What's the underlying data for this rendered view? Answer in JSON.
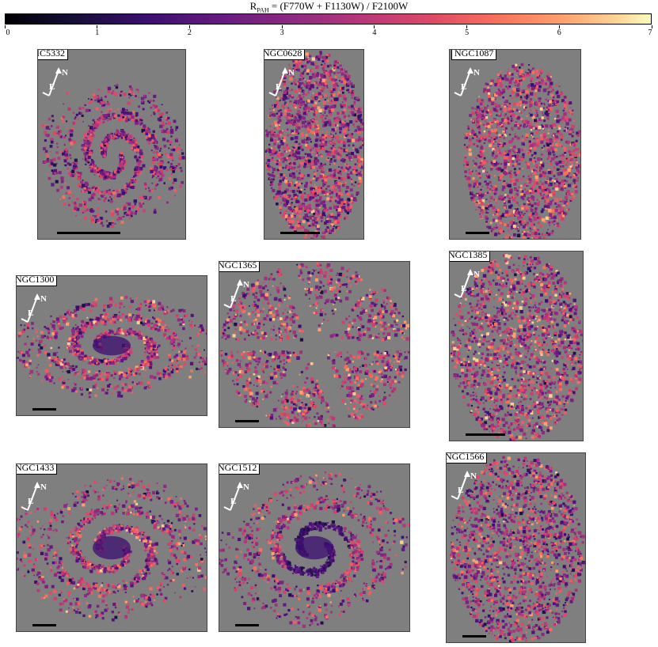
{
  "colorbar": {
    "title": "R",
    "title_sub": "PAH",
    "title_rest": " = (F770W + F1130W) / F2100W",
    "ticks": [
      "0",
      "1",
      "2",
      "3",
      "4",
      "5",
      "6",
      "7"
    ],
    "colormap": "magma",
    "range": [
      0,
      7
    ]
  },
  "compass": {
    "north": "N",
    "east": "E"
  },
  "panels": [
    {
      "name": "IC5332"
    },
    {
      "name": "NGC0628"
    },
    {
      "name": "NGC1087"
    },
    {
      "name": "NGC1300"
    },
    {
      "name": "NGC1365"
    },
    {
      "name": "NGC1385"
    },
    {
      "name": "NGC1433"
    },
    {
      "name": "NGC1512"
    },
    {
      "name": "NGC1566"
    }
  ],
  "colors": {
    "background_mask": "#7f7f7f"
  }
}
